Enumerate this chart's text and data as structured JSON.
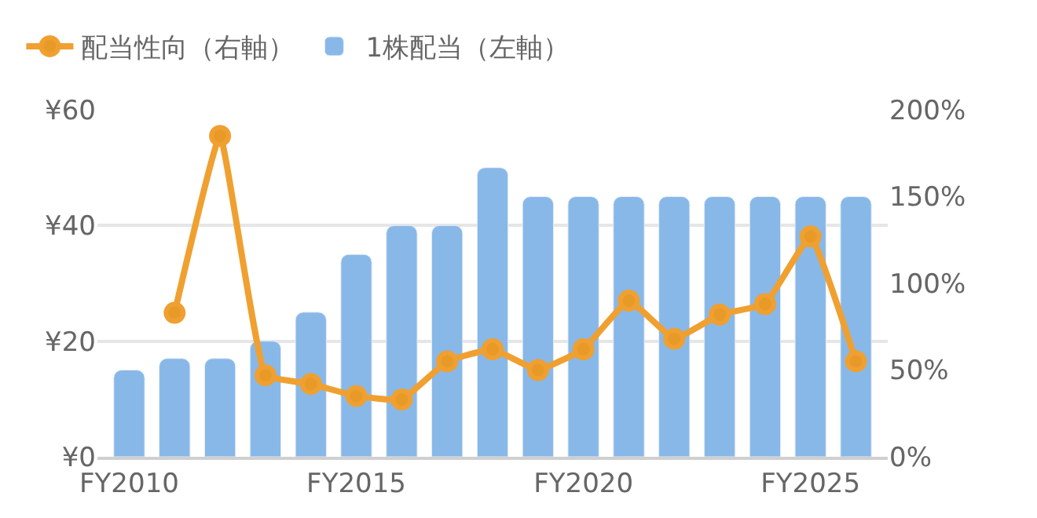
{
  "chart_data": {
    "type": "bar",
    "categories": [
      "FY2010",
      null,
      null,
      null,
      null,
      "FY2015",
      null,
      null,
      null,
      null,
      "FY2020",
      null,
      null,
      null,
      null,
      "FY2025",
      null
    ],
    "series": [
      {
        "name": "配当性向（右軸）",
        "type": "line",
        "axis": "y2",
        "color": "#f0a030",
        "values": [
          null,
          83,
          185,
          47,
          42,
          35,
          33,
          55,
          62,
          50,
          62,
          90,
          68,
          82,
          88,
          127,
          55
        ]
      },
      {
        "name": "1株配当（左軸）",
        "color": "#88b8e8",
        "values": [
          15,
          17,
          17,
          20,
          25,
          35,
          40,
          40,
          50,
          45,
          45,
          45,
          45,
          45,
          45,
          45,
          45
        ]
      }
    ],
    "ylim": [
      0,
      60
    ],
    "yticks": [
      {
        "value": 0,
        "label": "¥0"
      },
      {
        "value": 20,
        "label": "¥20"
      },
      {
        "value": 40,
        "label": "¥40"
      },
      {
        "value": 60,
        "label": "¥60"
      }
    ],
    "y2lim": [
      0,
      200
    ],
    "y2ticks": [
      {
        "value": 0,
        "label": "0%"
      },
      {
        "value": 50,
        "label": "50%"
      },
      {
        "value": 100,
        "label": "100%"
      },
      {
        "value": 150,
        "label": "150%"
      },
      {
        "value": 200,
        "label": "200%"
      }
    ],
    "grid": "y",
    "legend": "top left",
    "marker": "circle"
  }
}
